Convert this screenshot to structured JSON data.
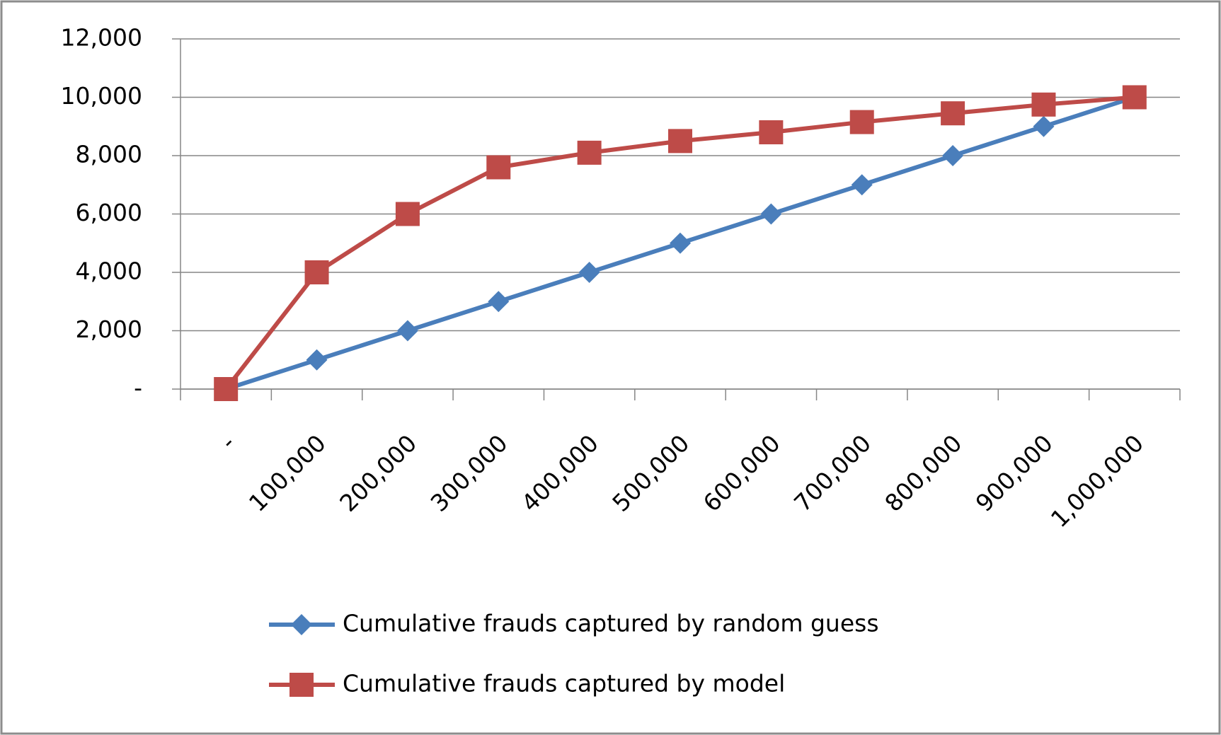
{
  "chart_data": {
    "type": "line",
    "categories": [
      "-",
      "100,000",
      "200,000",
      "300,000",
      "400,000",
      "500,000",
      "600,000",
      "700,000",
      "800,000",
      "900,000",
      "1,000,000"
    ],
    "series": [
      {
        "name": "Cumulative frauds captured by random guess",
        "color": "#4a7ebb",
        "marker": "diamond",
        "values": [
          0,
          1000,
          2000,
          3000,
          4000,
          5000,
          6000,
          7000,
          8000,
          9000,
          10000
        ]
      },
      {
        "name": "Cumulative frauds captured by model",
        "color": "#be4b48",
        "marker": "square",
        "values": [
          0,
          4000,
          6000,
          7600,
          8100,
          8500,
          8800,
          9150,
          9450,
          9750,
          10000
        ]
      }
    ],
    "ylim": [
      0,
      12000
    ],
    "yticks": [
      {
        "value": 0,
        "label": "-"
      },
      {
        "value": 2000,
        "label": "2,000"
      },
      {
        "value": 4000,
        "label": "4,000"
      },
      {
        "value": 6000,
        "label": "6,000"
      },
      {
        "value": 8000,
        "label": "8,000"
      },
      {
        "value": 10000,
        "label": "10,000"
      },
      {
        "value": 12000,
        "label": "12,000"
      }
    ],
    "grid": true,
    "legend": "bottom"
  }
}
